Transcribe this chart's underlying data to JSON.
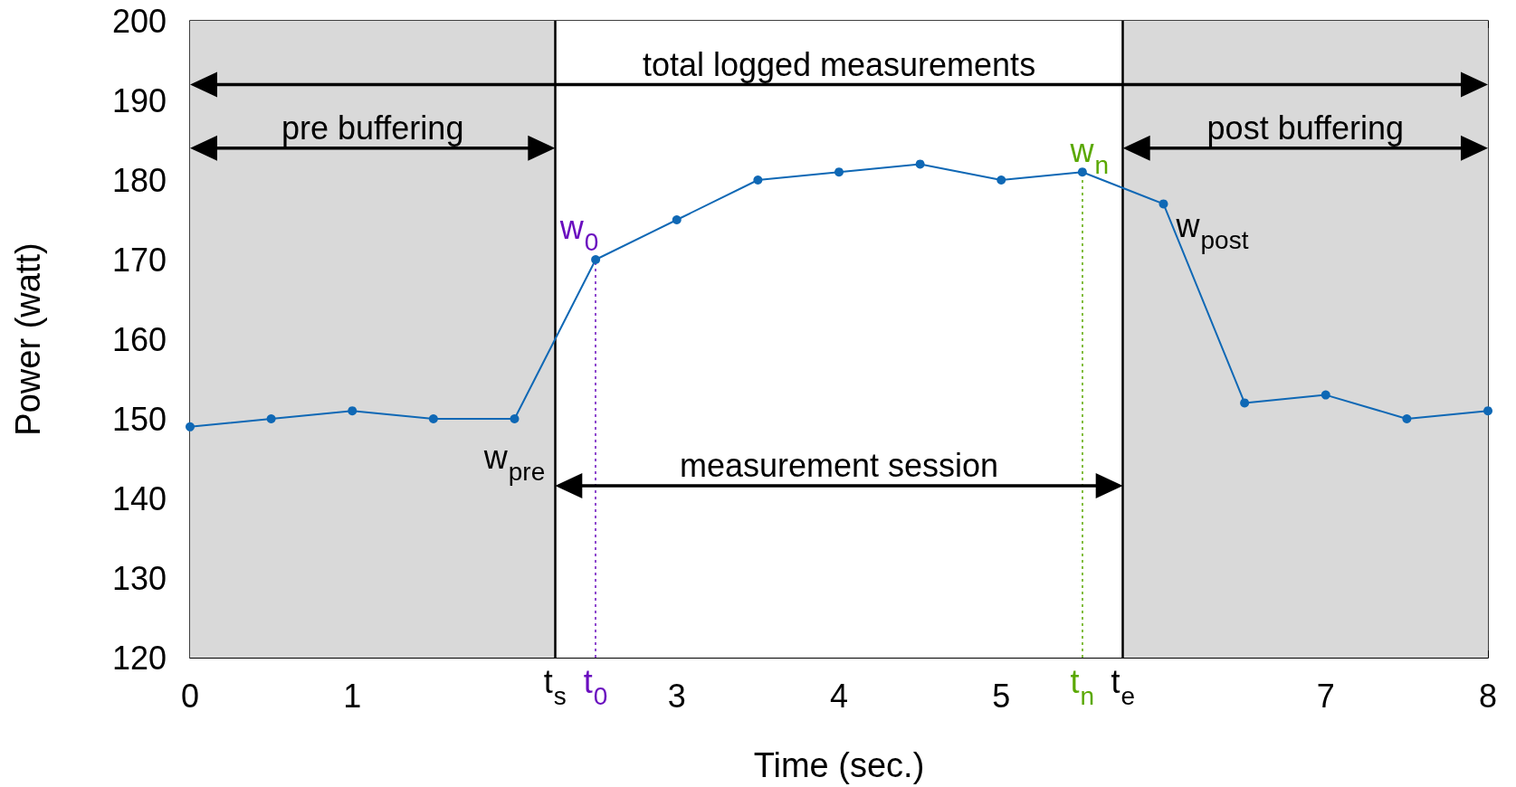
{
  "chart_data": {
    "type": "line",
    "xlabel": "Time (sec.)",
    "ylabel": "Power (watt)",
    "x": [
      0,
      0.5,
      1,
      1.5,
      2,
      2.5,
      3,
      3.5,
      4,
      4.5,
      5,
      5.5,
      6,
      6.5,
      7,
      7.5,
      8
    ],
    "series": [
      {
        "color": "#0f68b5",
        "values": [
          149,
          150,
          151,
          150,
          150,
          170,
          175,
          180,
          181,
          182,
          180,
          181,
          177,
          152,
          153,
          150,
          151
        ]
      }
    ],
    "xlim": [
      0,
      8
    ],
    "xticks": [
      0,
      1,
      3,
      4,
      5,
      7,
      8
    ],
    "ylim": [
      120,
      200
    ],
    "yticks": [
      120,
      130,
      140,
      150,
      160,
      170,
      180,
      190,
      200
    ],
    "grid": false,
    "marker": "circle",
    "line_style": "solid",
    "ref_lines": [
      {
        "axis": "x",
        "value": 2.25,
        "label": "t$_{s}$",
        "color": "#000000",
        "line_style": "solid"
      },
      {
        "axis": "x",
        "value": 2.5,
        "label": "t$_{0}$",
        "color": "#6a0dbf",
        "line_style": "dotted"
      },
      {
        "axis": "x",
        "value": 5.5,
        "label": "t$_{n}$",
        "color": "#5aa800",
        "line_style": "dotted"
      },
      {
        "axis": "x",
        "value": 5.75,
        "label": "t$_{e}$",
        "color": "#000000",
        "line_style": "solid"
      }
    ],
    "bands": [
      {
        "axis": "x",
        "from": 0,
        "to": 2.25,
        "label": "pre buffering",
        "color": "#d9d9d9"
      },
      {
        "axis": "x",
        "from": 2.25,
        "to": 5.75,
        "label": "measurement session",
        "color": "#ffffff"
      },
      {
        "axis": "x",
        "from": 5.75,
        "to": 8,
        "label": "post buffering",
        "color": "#d9d9d9"
      }
    ],
    "annotations": [
      "total logged measurements",
      {
        "text": "w$_{pre}$",
        "x": 2,
        "y": 150
      },
      {
        "text": "w$_{0}$",
        "x": 2.5,
        "y": 170
      },
      {
        "text": "w$_{n}$",
        "x": 5.5,
        "y": 181
      },
      {
        "text": "w$_{post}$",
        "x": 6,
        "y": 177
      }
    ]
  }
}
